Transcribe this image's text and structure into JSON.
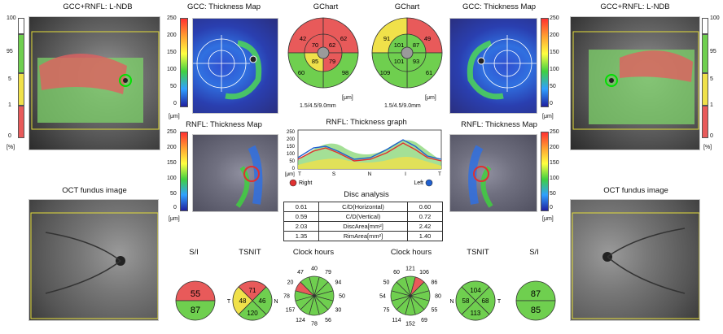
{
  "left_panel": {
    "title": "GCC+RNFL: L-NDB",
    "scale_labels": [
      "100",
      "95",
      "5",
      "1",
      "0"
    ],
    "unit": "[%]"
  },
  "right_panel": {
    "title": "GCC+RNFL: L-NDB",
    "scale_labels": [
      "100",
      "95",
      "5",
      "1",
      "0"
    ],
    "unit": "[%]"
  },
  "gcc_map_left": {
    "title": "GCC: Thickness Map",
    "scale": [
      "250",
      "200",
      "150",
      "100",
      "50",
      "0"
    ],
    "unit": "[μm]"
  },
  "gcc_map_right": {
    "title": "GCC: Thickness Map",
    "scale": [
      "250",
      "200",
      "150",
      "100",
      "50",
      "0"
    ],
    "unit": "[μm]"
  },
  "rnfl_map_left": {
    "title": "RNFL: Thickness Map",
    "scale": [
      "250",
      "200",
      "150",
      "100",
      "50",
      "0"
    ],
    "unit": "[μm]"
  },
  "rnfl_map_right": {
    "title": "RNFL: Thickness Map",
    "scale": [
      "250",
      "200",
      "150",
      "100",
      "50",
      "0"
    ],
    "unit": "[μm]"
  },
  "gchart_left": {
    "title": "GChart",
    "outer": [
      "42",
      "62",
      "98",
      "60"
    ],
    "inner": [
      "70",
      "62",
      "79",
      "85"
    ],
    "unit": "[μm]",
    "footer": "1.5/4.5/9.0mm"
  },
  "gchart_right": {
    "title": "GChart",
    "outer": [
      "91",
      "49",
      "61",
      "109"
    ],
    "inner": [
      "101",
      "87",
      "93",
      "101"
    ],
    "unit": "[μm]",
    "footer": "1.5/4.5/9.0mm"
  },
  "rnfl_graph": {
    "title": "RNFL: Thickness graph",
    "y_ticks": [
      "250",
      "200",
      "150",
      "100",
      "50",
      "0"
    ],
    "unit": "[μm]",
    "x_ticks": [
      "T",
      "S",
      "N",
      "I",
      "T"
    ],
    "legend_right": "Right",
    "legend_left": "Left"
  },
  "disc_analysis": {
    "title": "Disc analysis",
    "rows": [
      {
        "r": "0.61",
        "label": "C/D(Horizontal)",
        "l": "0.60"
      },
      {
        "r": "0.59",
        "label": "C/D(Vertical)",
        "l": "0.72"
      },
      {
        "r": "2.03",
        "label": "DiscArea[mm²]",
        "l": "2.42"
      },
      {
        "r": "1.35",
        "label": "RimArea[mm²]",
        "l": "1.40"
      }
    ]
  },
  "fundus_left": {
    "title": "OCT fundus image"
  },
  "fundus_right": {
    "title": "OCT fundus image"
  },
  "si_left": {
    "title": "S/I",
    "top": "55",
    "bottom": "87"
  },
  "si_right": {
    "title": "S/I",
    "top": "87",
    "bottom": "85"
  },
  "tsnit_left": {
    "title": "TSNIT",
    "top": "71",
    "left": "48",
    "right": "46",
    "bottom": "120",
    "label_t": "T",
    "label_n": "N"
  },
  "tsnit_right": {
    "title": "TSNIT",
    "top": "104",
    "left": "58",
    "right": "68",
    "bottom": "113",
    "label_n": "N",
    "label_t": "T"
  },
  "clock_left": {
    "title": "Clock hours",
    "values": [
      "79",
      "94",
      "50",
      "30",
      "56",
      "78",
      "124",
      "157",
      "78",
      "20",
      "47",
      "40"
    ]
  },
  "clock_right": {
    "title": "Clock hours",
    "values": [
      "106",
      "86",
      "80",
      "55",
      "69",
      "152",
      "114",
      "75",
      "54",
      "50",
      "60",
      "121"
    ]
  },
  "colors": {
    "green": "#6fcf4f",
    "red": "#e85a5a",
    "yellow": "#f0e14a",
    "gray": "#9a9a9a"
  }
}
